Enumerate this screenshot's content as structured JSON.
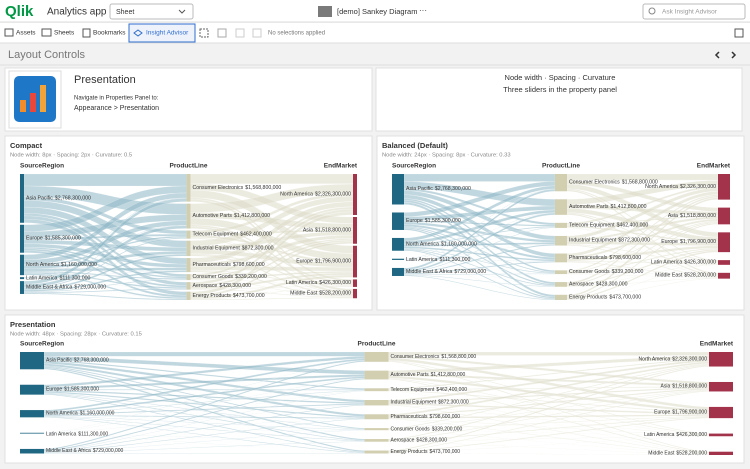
{
  "app": {
    "logo": "Qlik",
    "name": "Analytics app",
    "sheet_dropdown": "Sheet",
    "sheet_name": "[demo] Sankey Diagram",
    "more": "···",
    "search_placeholder": "Ask Insight Advisor"
  },
  "toolbar": {
    "assets": "Assets",
    "sheets": "Sheets",
    "bookmarks": "Bookmarks",
    "insight": "Insight Advisor",
    "selections": "No selections applied"
  },
  "sheet": {
    "title": "Layout Controls"
  },
  "intro": {
    "title": "Presentation",
    "line1": "Navigate in Properties Panel to:",
    "line2": "Appearance > Presentation"
  },
  "info": {
    "line1": "Node width · Spacing · Curvature",
    "line2": "Three sliders in the property panel"
  },
  "chart_data": {
    "type": "sankey",
    "columns": [
      "SourceRegion",
      "ProductLine",
      "EndMarket"
    ],
    "source_color": "#1f6782",
    "product_color": "#d2cfb0",
    "market_color": "#a3334b",
    "source_link_color": "#8db7c5",
    "product_link_color": "#dcdac6",
    "sources": [
      {
        "name": "Asia Pacific",
        "value": 2768300000,
        "label": "$2,768,300,000"
      },
      {
        "name": "Europe",
        "value": 1585300000,
        "label": "$1,585,300,000"
      },
      {
        "name": "North America",
        "value": 1160000000,
        "label": "$1,160,000,000"
      },
      {
        "name": "Latin America",
        "value": 111300000,
        "label": "$111,300,000"
      },
      {
        "name": "Middle East & Africa",
        "value": 729000000,
        "label": "$729,000,000"
      }
    ],
    "products": [
      {
        "name": "Consumer Electronics",
        "value": 1568800000,
        "label": "$1,568,800,000"
      },
      {
        "name": "Automotive Parts",
        "value": 1412800000,
        "label": "$1,412,800,000"
      },
      {
        "name": "Telecom Equipment",
        "value": 462400000,
        "label": "$462,400,000"
      },
      {
        "name": "Industrial Equipment",
        "value": 872300000,
        "label": "$872,300,000"
      },
      {
        "name": "Pharmaceuticals",
        "value": 798600000,
        "label": "$798,600,000"
      },
      {
        "name": "Consumer Goods",
        "value": 339200000,
        "label": "$339,200,000"
      },
      {
        "name": "Aerospace",
        "value": 428300000,
        "label": "$428,300,000"
      },
      {
        "name": "Energy Products",
        "value": 473700000,
        "label": "$473,700,000"
      }
    ],
    "markets": [
      {
        "name": "North America",
        "value": 2326300000,
        "label": "$2,326,300,000"
      },
      {
        "name": "Asia",
        "value": 1518800000,
        "label": "$1,518,800,000"
      },
      {
        "name": "Europe",
        "value": 1796900000,
        "label": "$1,796,900,000"
      },
      {
        "name": "Latin America",
        "value": 426300000,
        "label": "$426,300,000"
      },
      {
        "name": "Middle East",
        "value": 528200000,
        "label": "$528,200,000"
      }
    ],
    "panels": [
      {
        "title": "Compact",
        "subtitle": "Node width: 8px · Spacing: 2px · Curvature: 0.5",
        "node_width": 8,
        "spacing": 2,
        "curvature": 0.5
      },
      {
        "title": "Balanced (Default)",
        "subtitle": "Node width: 24px · Spacing: 8px · Curvature: 0.33",
        "node_width": 24,
        "spacing": 8,
        "curvature": 0.33
      },
      {
        "title": "Presentation",
        "subtitle": "Node width: 48px · Spacing: 28px · Curvature: 0.15",
        "node_width": 48,
        "spacing": 28,
        "curvature": 0.15
      }
    ]
  }
}
